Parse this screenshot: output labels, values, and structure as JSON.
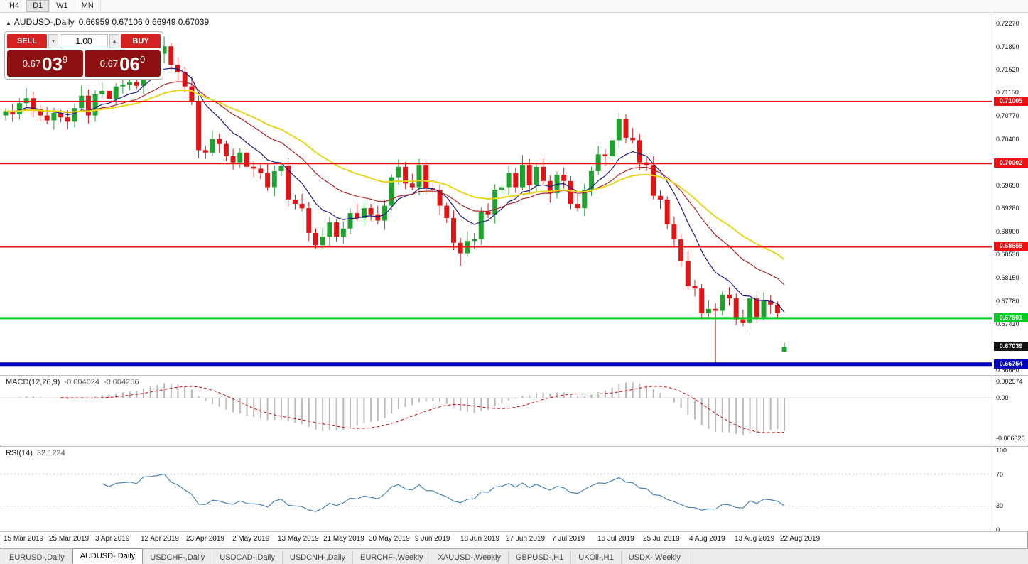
{
  "toolbar": {
    "timeframes": [
      "H4",
      "D1",
      "W1",
      "MN"
    ],
    "active": "D1"
  },
  "chart": {
    "collapse_icon": "▲",
    "symbol_title": "AUDUSD-,Daily",
    "quote_text": "0.66959 0.67106 0.66949 0.67039"
  },
  "one_click": {
    "sell_label": "SELL",
    "buy_label": "BUY",
    "volume": "1.00",
    "spinner_down": "▼",
    "spinner_up": "▲",
    "sell_price": {
      "prefix": "0.67",
      "big": "03",
      "sup": "9"
    },
    "buy_price": {
      "prefix": "0.67",
      "big": "06",
      "sup": "0"
    }
  },
  "chart_data": {
    "type": "candlestick",
    "title": "AUDUSD-,Daily",
    "ohlc_current": {
      "open": 0.66959,
      "high": 0.67106,
      "low": 0.66949,
      "close": 0.67039
    },
    "y_axis": [
      {
        "text": "0.72270",
        "value": 0.7227
      },
      {
        "text": "0.71890",
        "value": 0.7189
      },
      {
        "text": "0.71520",
        "value": 0.7152
      },
      {
        "text": "0.71150",
        "value": 0.7115
      },
      {
        "text": "0.70770",
        "value": 0.7077
      },
      {
        "text": "0.70400",
        "value": 0.704
      },
      {
        "text": "0.69650",
        "value": 0.6965
      },
      {
        "text": "0.69280",
        "value": 0.6928
      },
      {
        "text": "0.68900",
        "value": 0.689
      },
      {
        "text": "0.68530",
        "value": 0.6853
      },
      {
        "text": "0.68150",
        "value": 0.6815
      },
      {
        "text": "0.67780",
        "value": 0.6778
      },
      {
        "text": "0.67410",
        "value": 0.6741
      },
      {
        "text": "0.66660",
        "value": 0.6666
      }
    ],
    "x_labels": [
      "15 Mar 2019",
      "25 Mar 2019",
      "3 Apr 2019",
      "12 Apr 2019",
      "23 Apr 2019",
      "2 May 2019",
      "13 May 2019",
      "21 May 2019",
      "30 May 2019",
      "9 Jun 2019",
      "18 Jun 2019",
      "27 Jun 2019",
      "7 Jul 2019",
      "16 Jul 2019",
      "25 Jul 2019",
      "4 Aug 2019",
      "13 Aug 2019",
      "22 Aug 2019"
    ],
    "hlines": [
      {
        "price": 0.71005,
        "label": "0.71005",
        "color": "#ee1111",
        "thickness": 2,
        "text_color": "#ffffff"
      },
      {
        "price": 0.70002,
        "label": "0.70002",
        "color": "#ee1111",
        "thickness": 2,
        "text_color": "#ffffff"
      },
      {
        "price": 0.68655,
        "label": "0.68655",
        "color": "#ee1111",
        "thickness": 2,
        "text_color": "#ffffff"
      },
      {
        "price": 0.67501,
        "label": "0.67501",
        "color": "#00cc22",
        "thickness": 3,
        "text_color": "#ffffff"
      },
      {
        "price": 0.66754,
        "label": "0.66754",
        "color": "#0000bb",
        "thickness": 5,
        "text_color": "#ffffff"
      }
    ],
    "current_price": {
      "label": "0.67039",
      "price": 0.67039,
      "bg": "#111111",
      "text_color": "#ffffff"
    },
    "moving_averages": [
      {
        "name": "fast",
        "period": 9,
        "color": "#1c1c86",
        "width": 1.2
      },
      {
        "name": "medium",
        "period": 20,
        "color": "#b22222",
        "width": 1.2
      },
      {
        "name": "slow",
        "period": 34,
        "color": "#e9d51b",
        "width": 2
      }
    ],
    "macd": {
      "label": "MACD(12,26,9)",
      "macd_value": "-0.004024",
      "signal_value": "-0.004256",
      "fast": 12,
      "slow": 26,
      "signal": 9,
      "axis": [
        {
          "text": "0.002574",
          "value": 0.002574
        },
        {
          "text": "0.00",
          "value": 0
        },
        {
          "text": "-0.006326",
          "value": -0.006326
        }
      ]
    },
    "rsi": {
      "label": "RSI(14)",
      "value": "32.1224",
      "period": 14,
      "levels": [
        70,
        30
      ],
      "axis": [
        {
          "text": "100",
          "value": 100
        },
        {
          "text": "70",
          "value": 70
        },
        {
          "text": "30",
          "value": 30
        },
        {
          "text": "0",
          "value": 0
        }
      ]
    },
    "candles": [
      [
        0.7078,
        0.709,
        0.707,
        0.7085
      ],
      [
        0.7085,
        0.7097,
        0.7068,
        0.708
      ],
      [
        0.708,
        0.7106,
        0.7071,
        0.7098
      ],
      [
        0.7098,
        0.7122,
        0.7093,
        0.7106
      ],
      [
        0.7106,
        0.7116,
        0.7075,
        0.7088
      ],
      [
        0.7088,
        0.7095,
        0.7068,
        0.7078
      ],
      [
        0.7078,
        0.7092,
        0.7064,
        0.707
      ],
      [
        0.707,
        0.7091,
        0.7055,
        0.7082
      ],
      [
        0.7082,
        0.7087,
        0.7067,
        0.7075
      ],
      [
        0.7075,
        0.7087,
        0.7056,
        0.7068
      ],
      [
        0.7068,
        0.7098,
        0.7059,
        0.709
      ],
      [
        0.709,
        0.7126,
        0.7085,
        0.711
      ],
      [
        0.711,
        0.712,
        0.7065,
        0.7078
      ],
      [
        0.7078,
        0.7119,
        0.7068,
        0.7112
      ],
      [
        0.7112,
        0.7132,
        0.7106,
        0.7118
      ],
      [
        0.7118,
        0.7127,
        0.709,
        0.7105
      ],
      [
        0.7105,
        0.713,
        0.7097,
        0.7125
      ],
      [
        0.7125,
        0.714,
        0.7113,
        0.7128
      ],
      [
        0.7128,
        0.714,
        0.7119,
        0.7132
      ],
      [
        0.7132,
        0.7142,
        0.7121,
        0.7126
      ],
      [
        0.7126,
        0.7178,
        0.7113,
        0.7168
      ],
      [
        0.7168,
        0.7179,
        0.7158,
        0.7172
      ],
      [
        0.7172,
        0.7192,
        0.7166,
        0.7178
      ],
      [
        0.7178,
        0.7206,
        0.7163,
        0.719
      ],
      [
        0.719,
        0.7195,
        0.7152,
        0.716
      ],
      [
        0.716,
        0.7172,
        0.7136,
        0.7148
      ],
      [
        0.7148,
        0.7156,
        0.7116,
        0.7125
      ],
      [
        0.7125,
        0.7141,
        0.7095,
        0.71
      ],
      [
        0.71,
        0.711,
        0.7009,
        0.7022
      ],
      [
        0.7022,
        0.7029,
        0.7008,
        0.7018
      ],
      [
        0.7018,
        0.7054,
        0.7012,
        0.704
      ],
      [
        0.704,
        0.7049,
        0.7017,
        0.7032
      ],
      [
        0.7032,
        0.7037,
        0.7004,
        0.7012
      ],
      [
        0.7012,
        0.7024,
        0.699,
        0.7002
      ],
      [
        0.7002,
        0.7026,
        0.6993,
        0.7018
      ],
      [
        0.7018,
        0.7034,
        0.699,
        0.6995
      ],
      [
        0.6995,
        0.7005,
        0.6979,
        0.6992
      ],
      [
        0.6992,
        0.6999,
        0.6975,
        0.6985
      ],
      [
        0.6985,
        0.6999,
        0.6956,
        0.6962
      ],
      [
        0.6962,
        0.6997,
        0.6947,
        0.6988
      ],
      [
        0.6988,
        0.7002,
        0.698,
        0.6997
      ],
      [
        0.6997,
        0.7009,
        0.693,
        0.6942
      ],
      [
        0.6942,
        0.695,
        0.6926,
        0.6935
      ],
      [
        0.6935,
        0.6951,
        0.6923,
        0.6928
      ],
      [
        0.6928,
        0.6938,
        0.6875,
        0.6888
      ],
      [
        0.6888,
        0.6895,
        0.6863,
        0.6868
      ],
      [
        0.6868,
        0.6896,
        0.6862,
        0.6882
      ],
      [
        0.6882,
        0.6914,
        0.6867,
        0.6905
      ],
      [
        0.6905,
        0.691,
        0.6874,
        0.6882
      ],
      [
        0.6882,
        0.6907,
        0.687,
        0.6895
      ],
      [
        0.6895,
        0.6928,
        0.6886,
        0.692
      ],
      [
        0.692,
        0.6936,
        0.6907,
        0.6912
      ],
      [
        0.6912,
        0.6938,
        0.6899,
        0.6928
      ],
      [
        0.6928,
        0.6935,
        0.6908,
        0.6918
      ],
      [
        0.6918,
        0.6932,
        0.6902,
        0.6908
      ],
      [
        0.6908,
        0.6941,
        0.6893,
        0.6932
      ],
      [
        0.6932,
        0.6983,
        0.6924,
        0.6978
      ],
      [
        0.6978,
        0.7007,
        0.6966,
        0.6995
      ],
      [
        0.6995,
        0.7003,
        0.6959,
        0.6968
      ],
      [
        0.6968,
        0.6984,
        0.6957,
        0.6962
      ],
      [
        0.6962,
        0.7008,
        0.6949,
        0.6998
      ],
      [
        0.6998,
        0.7005,
        0.695,
        0.696
      ],
      [
        0.696,
        0.6974,
        0.6952,
        0.6958
      ],
      [
        0.6958,
        0.6967,
        0.6917,
        0.6932
      ],
      [
        0.6932,
        0.6937,
        0.6904,
        0.6912
      ],
      [
        0.6912,
        0.6924,
        0.686,
        0.6872
      ],
      [
        0.6872,
        0.688,
        0.6835,
        0.6855
      ],
      [
        0.6855,
        0.6891,
        0.685,
        0.6875
      ],
      [
        0.6875,
        0.6888,
        0.6862,
        0.6878
      ],
      [
        0.6878,
        0.6929,
        0.6868,
        0.6922
      ],
      [
        0.6922,
        0.6936,
        0.6912,
        0.6918
      ],
      [
        0.6918,
        0.6967,
        0.6903,
        0.6958
      ],
      [
        0.6958,
        0.6967,
        0.695,
        0.6962
      ],
      [
        0.6962,
        0.6997,
        0.695,
        0.6985
      ],
      [
        0.6985,
        0.6993,
        0.6953,
        0.6962
      ],
      [
        0.6962,
        0.7014,
        0.6957,
        0.6998
      ],
      [
        0.6998,
        0.7008,
        0.6952,
        0.6965
      ],
      [
        0.6965,
        0.7002,
        0.6955,
        0.6995
      ],
      [
        0.6995,
        0.7009,
        0.6966,
        0.6972
      ],
      [
        0.6972,
        0.6981,
        0.6937,
        0.6952
      ],
      [
        0.6952,
        0.6987,
        0.6944,
        0.6982
      ],
      [
        0.6982,
        0.6994,
        0.696,
        0.6972
      ],
      [
        0.6972,
        0.698,
        0.6926,
        0.6935
      ],
      [
        0.6935,
        0.6951,
        0.6923,
        0.6928
      ],
      [
        0.6928,
        0.6968,
        0.6915,
        0.6958
      ],
      [
        0.6958,
        0.6995,
        0.6948,
        0.6988
      ],
      [
        0.6988,
        0.7029,
        0.6982,
        0.7015
      ],
      [
        0.7015,
        0.7024,
        0.6997,
        0.7012
      ],
      [
        0.7012,
        0.7043,
        0.7004,
        0.7038
      ],
      [
        0.7038,
        0.7082,
        0.7026,
        0.7072
      ],
      [
        0.7072,
        0.708,
        0.7033,
        0.7042
      ],
      [
        0.7042,
        0.7058,
        0.7033,
        0.7038
      ],
      [
        0.7038,
        0.7048,
        0.6989,
        0.7002
      ],
      [
        0.7002,
        0.7009,
        0.6988,
        0.6998
      ],
      [
        0.6998,
        0.7012,
        0.6942,
        0.6948
      ],
      [
        0.6948,
        0.6957,
        0.6927,
        0.6942
      ],
      [
        0.6942,
        0.6947,
        0.6894,
        0.6902
      ],
      [
        0.6902,
        0.6914,
        0.6866,
        0.6878
      ],
      [
        0.6878,
        0.6886,
        0.6833,
        0.6842
      ],
      [
        0.6842,
        0.6858,
        0.6797,
        0.6802
      ],
      [
        0.6802,
        0.6812,
        0.6785,
        0.6798
      ],
      [
        0.6798,
        0.6805,
        0.6748,
        0.6758
      ],
      [
        0.6758,
        0.6779,
        0.6752,
        0.6765
      ],
      [
        0.6765,
        0.6774,
        0.6677,
        0.6762
      ],
      [
        0.6762,
        0.6793,
        0.6754,
        0.6788
      ],
      [
        0.6788,
        0.68,
        0.677,
        0.6782
      ],
      [
        0.6782,
        0.679,
        0.6739,
        0.6748
      ],
      [
        0.6748,
        0.6764,
        0.6737,
        0.6742
      ],
      [
        0.6742,
        0.6792,
        0.6729,
        0.6782
      ],
      [
        0.6782,
        0.6789,
        0.6742,
        0.6752
      ],
      [
        0.6752,
        0.6792,
        0.6746,
        0.6778
      ],
      [
        0.6778,
        0.6787,
        0.6757,
        0.6772
      ],
      [
        0.6772,
        0.6777,
        0.675,
        0.6758
      ],
      [
        0.66959,
        0.67106,
        0.66949,
        0.67039
      ]
    ]
  },
  "tabs": [
    {
      "label": "EURUSD-,Daily",
      "active": false
    },
    {
      "label": "AUDUSD-,Daily",
      "active": true
    },
    {
      "label": "USDCHF-,Daily",
      "active": false
    },
    {
      "label": "USDCAD-,Daily",
      "active": false
    },
    {
      "label": "USDCNH-,Daily",
      "active": false
    },
    {
      "label": "EURCHF-,Weekly",
      "active": false
    },
    {
      "label": "XAUUSD-,Weekly",
      "active": false
    },
    {
      "label": "GBPUSD-,H1",
      "active": false
    },
    {
      "label": "UKOil-,H1",
      "active": false
    },
    {
      "label": "USDX-,Weekly",
      "active": false
    }
  ],
  "colors": {
    "candle_up": "#1fa32e",
    "candle_down": "#e01414",
    "macd_histogram": "#b9b9b9",
    "macd_signal": "#cc0000",
    "rsi_line": "#4a84b8",
    "rsi_level": "#b9b9b9"
  }
}
